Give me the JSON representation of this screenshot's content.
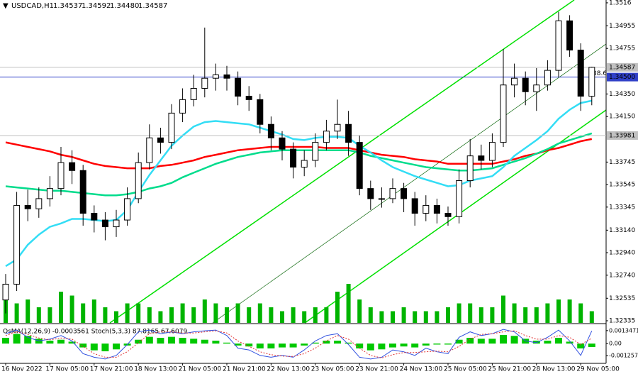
{
  "chart_data": {
    "type": "candlestick",
    "header": {
      "symbol": "USDCAD,H1",
      "ohlc": [
        "1.34537",
        "1.34592",
        "1.34480",
        "1.34587"
      ]
    },
    "categories": [
      "16 Nov 2022",
      null,
      null,
      null,
      "17 Nov 05:00",
      null,
      null,
      null,
      "17 Nov 21:00",
      null,
      null,
      null,
      "18 Nov 13:00",
      null,
      null,
      null,
      "21 Nov 05:00",
      null,
      null,
      null,
      "21 Nov 21:00",
      null,
      null,
      null,
      "22 Nov 13:00",
      null,
      null,
      null,
      "23 Nov 05:00",
      null,
      null,
      null,
      "23 Nov 21:00",
      null,
      null,
      null,
      "24 Nov 13:00",
      null,
      null,
      null,
      "25 Nov 05:00",
      null,
      null,
      null,
      "25 Nov 21:00",
      null,
      null,
      null,
      "28 Nov 13:00",
      null,
      null,
      null,
      "29 Nov 05:00",
      null
    ],
    "open": [
      1.3252,
      1.3266,
      1.3336,
      1.3333,
      1.3342,
      1.3351,
      1.3374,
      1.3367,
      1.3329,
      1.3323,
      1.3317,
      1.3323,
      1.3342,
      1.3374,
      1.3396,
      1.3392,
      1.3418,
      1.343,
      1.344,
      1.3449,
      1.3452,
      1.3449,
      1.3433,
      1.343,
      1.3408,
      1.3396,
      1.3386,
      1.337,
      1.3376,
      1.3392,
      1.3402,
      1.3408,
      1.3392,
      1.3351,
      1.3342,
      1.3342,
      1.3351,
      1.3342,
      1.3329,
      1.3336,
      1.3329,
      1.3326,
      1.3358,
      1.338,
      1.3376,
      1.3392,
      1.3443,
      1.3449,
      1.3437,
      1.3443,
      1.3456,
      1.35,
      1.3474,
      1.3433
    ],
    "high": [
      1.3275,
      1.3348,
      1.335,
      1.3352,
      1.3362,
      1.3388,
      1.3385,
      1.3372,
      1.3336,
      1.333,
      1.3332,
      1.3352,
      1.3383,
      1.3408,
      1.3405,
      1.3426,
      1.344,
      1.3452,
      1.3494,
      1.3462,
      1.346,
      1.3455,
      1.3442,
      1.3435,
      1.3415,
      1.3402,
      1.3392,
      1.3385,
      1.34,
      1.3412,
      1.343,
      1.342,
      1.3398,
      1.3358,
      1.3352,
      1.336,
      1.3356,
      1.3348,
      1.3345,
      1.3342,
      1.3335,
      1.3368,
      1.3395,
      1.339,
      1.34,
      1.3475,
      1.3462,
      1.3455,
      1.3458,
      1.3465,
      1.3508,
      1.3505,
      1.348,
      1.34592
    ],
    "low": [
      1.324,
      1.326,
      1.3322,
      1.3325,
      1.3335,
      1.3345,
      1.3355,
      1.3318,
      1.3312,
      1.3305,
      1.3308,
      1.3318,
      1.3338,
      1.3368,
      1.3382,
      1.3386,
      1.341,
      1.3424,
      1.3432,
      1.3438,
      1.3438,
      1.3425,
      1.342,
      1.34,
      1.3385,
      1.3376,
      1.336,
      1.3362,
      1.337,
      1.3385,
      1.3395,
      1.338,
      1.3345,
      1.3332,
      1.3334,
      1.3338,
      1.333,
      1.3318,
      1.3322,
      1.332,
      1.3318,
      1.332,
      1.3352,
      1.3368,
      1.337,
      1.3388,
      1.3432,
      1.3425,
      1.342,
      1.3438,
      1.345,
      1.3468,
      1.342,
      1.3425
    ],
    "close": [
      1.3266,
      1.3336,
      1.3333,
      1.3342,
      1.3351,
      1.3374,
      1.3367,
      1.3329,
      1.3323,
      1.3317,
      1.3323,
      1.3342,
      1.3374,
      1.3396,
      1.3392,
      1.3418,
      1.343,
      1.344,
      1.3449,
      1.3452,
      1.3449,
      1.3433,
      1.343,
      1.3408,
      1.3396,
      1.3386,
      1.337,
      1.3376,
      1.3392,
      1.3402,
      1.3408,
      1.3392,
      1.3351,
      1.3342,
      1.3342,
      1.3351,
      1.3342,
      1.3329,
      1.3336,
      1.3329,
      1.3326,
      1.3358,
      1.338,
      1.3376,
      1.3392,
      1.3443,
      1.3449,
      1.3437,
      1.3443,
      1.3456,
      1.35,
      1.3474,
      1.3433,
      1.34587
    ],
    "volume": [
      9,
      5,
      6,
      4,
      4,
      8,
      7,
      5,
      6,
      4,
      3,
      5,
      5,
      4,
      3,
      4,
      5,
      4,
      6,
      5,
      4,
      5,
      4,
      5,
      4,
      3,
      4,
      3,
      4,
      4,
      8,
      10,
      6,
      4,
      3,
      3,
      4,
      3,
      3,
      3,
      4,
      5,
      5,
      4,
      4,
      7,
      5,
      4,
      4,
      5,
      6,
      6,
      5,
      3
    ],
    "volume_color": "#00b400",
    "series": [
      {
        "color": "#ff0000",
        "values": [
          1.3392,
          1.339,
          1.3388,
          1.3386,
          1.3384,
          1.3381,
          1.3379,
          1.3376,
          1.3373,
          1.3371,
          1.337,
          1.3369,
          1.3369,
          1.3369,
          1.3371,
          1.3372,
          1.3374,
          1.3376,
          1.3379,
          1.3381,
          1.3383,
          1.3385,
          1.3386,
          1.3387,
          1.3388,
          1.3388,
          1.3388,
          1.3388,
          1.3388,
          1.3387,
          1.3387,
          1.3387,
          1.3385,
          1.3383,
          1.3381,
          1.338,
          1.3379,
          1.3377,
          1.3376,
          1.3375,
          1.3373,
          1.3373,
          1.3373,
          1.3373,
          1.3373,
          1.3375,
          1.3377,
          1.338,
          1.3382,
          1.3385,
          1.3387,
          1.339,
          1.3393,
          1.3395
        ]
      },
      {
        "color": "#00dc8c",
        "values": [
          1.3353,
          1.3352,
          1.3351,
          1.335,
          1.3349,
          1.3349,
          1.3348,
          1.3347,
          1.3346,
          1.3345,
          1.3345,
          1.3346,
          1.3348,
          1.3351,
          1.3353,
          1.3356,
          1.3361,
          1.3365,
          1.3369,
          1.3373,
          1.3376,
          1.3379,
          1.3381,
          1.3383,
          1.3384,
          1.3385,
          1.3385,
          1.3385,
          1.3385,
          1.3385,
          1.3385,
          1.3385,
          1.3383,
          1.338,
          1.3378,
          1.3376,
          1.3374,
          1.3372,
          1.337,
          1.3369,
          1.3368,
          1.3367,
          1.3367,
          1.3368,
          1.3369,
          1.3372,
          1.3375,
          1.3378,
          1.3382,
          1.3386,
          1.3391,
          1.3394,
          1.3397,
          1.34
        ]
      },
      {
        "color": "#33ddf5",
        "values": [
          1.3282,
          1.3288,
          1.3301,
          1.331,
          1.3317,
          1.332,
          1.3324,
          1.3324,
          1.3323,
          1.3322,
          1.3323,
          1.3332,
          1.3348,
          1.3363,
          1.3376,
          1.3389,
          1.3398,
          1.3406,
          1.341,
          1.3411,
          1.341,
          1.3409,
          1.3408,
          1.3405,
          1.3402,
          1.3399,
          1.3395,
          1.3394,
          1.3396,
          1.3397,
          1.3397,
          1.3396,
          1.3389,
          1.3383,
          1.3376,
          1.337,
          1.3366,
          1.3362,
          1.3359,
          1.3356,
          1.3353,
          1.3354,
          1.3358,
          1.336,
          1.3362,
          1.337,
          1.338,
          1.3387,
          1.3394,
          1.3402,
          1.3413,
          1.3421,
          1.3427,
          1.3429
        ]
      }
    ],
    "ylim": [
      1.32316,
      1.35185
    ],
    "yticks": [
      1.3516,
      1.34955,
      1.34755,
      {
        "value": 1.3435,
        "label": "1.34350"
      },
      {
        "value": 1.3415,
        "label": "1.34150"
      },
      1.33745,
      1.33545,
      1.33345,
      {
        "value": 1.3314,
        "label": "1.33140"
      },
      {
        "value": 1.3294,
        "label": "1.32940"
      },
      {
        "value": 1.3274,
        "label": "1.32740"
      },
      1.32535,
      1.32335
    ],
    "price_lines": [
      {
        "value": 1.34587,
        "label": "1.34587",
        "color": "#c0c0c0"
      },
      {
        "value": 1.345,
        "label": "1.34500",
        "color": "#3040c8"
      },
      {
        "value": 1.33981,
        "label": "1.33981",
        "color": "#c0c0c0"
      }
    ],
    "annotation": "38.6",
    "indicator": {
      "title": "OsMA(12,26,9) -0.0003561  Stoch(5,3,3) 87.8165 67.6079",
      "ylim": [
        -0.00198,
        0.00178
      ],
      "yticks": [
        0.0013471,
        {
          "value": 0,
          "label": "0.00"
        },
        -0.001257
      ],
      "osma_color": "#00c800",
      "osma": [
        0.0006,
        0.001,
        0.0008,
        0.0005,
        0.0003,
        0.0004,
        0.0002,
        -0.0004,
        -0.0007,
        -0.0008,
        -0.0006,
        -0.0002,
        0.0004,
        0.0007,
        0.0006,
        0.0007,
        0.0006,
        0.0005,
        0.0004,
        0.0003,
        0.0001,
        -0.0002,
        -0.0003,
        -0.0005,
        -0.0005,
        -0.0004,
        -0.0004,
        -0.0002,
        0.0001,
        0.0003,
        0.0003,
        0.0001,
        -0.0005,
        -0.0007,
        -0.0006,
        -0.0004,
        -0.0003,
        -0.0004,
        -0.0002,
        -0.0001,
        -0.0001,
        0.0004,
        0.0006,
        0.0005,
        0.0005,
        0.0009,
        0.0008,
        0.0005,
        0.0003,
        0.0003,
        0.0006,
        0.0002,
        -0.0005,
        -0.0003561
      ],
      "stoch_ylim": [
        0,
        100
      ],
      "stoch_main_color": "#3050e0",
      "stoch_main": [
        80,
        90,
        70,
        60,
        65,
        75,
        60,
        25,
        15,
        10,
        20,
        50,
        85,
        90,
        80,
        85,
        80,
        85,
        88,
        90,
        75,
        40,
        35,
        20,
        15,
        20,
        15,
        35,
        60,
        75,
        80,
        50,
        15,
        10,
        15,
        35,
        30,
        20,
        40,
        30,
        25,
        70,
        85,
        75,
        80,
        92,
        85,
        60,
        55,
        70,
        90,
        60,
        20,
        87.8165
      ],
      "stoch_signal_color": "#e03030",
      "stoch_signal": [
        75,
        85,
        78,
        68,
        63,
        68,
        65,
        45,
        25,
        15,
        15,
        30,
        55,
        80,
        85,
        85,
        82,
        82,
        85,
        88,
        82,
        60,
        45,
        30,
        22,
        18,
        17,
        25,
        40,
        60,
        75,
        65,
        40,
        20,
        13,
        22,
        28,
        28,
        30,
        32,
        30,
        45,
        65,
        78,
        80,
        85,
        88,
        75,
        65,
        65,
        75,
        70,
        50,
        67.6079
      ]
    }
  }
}
